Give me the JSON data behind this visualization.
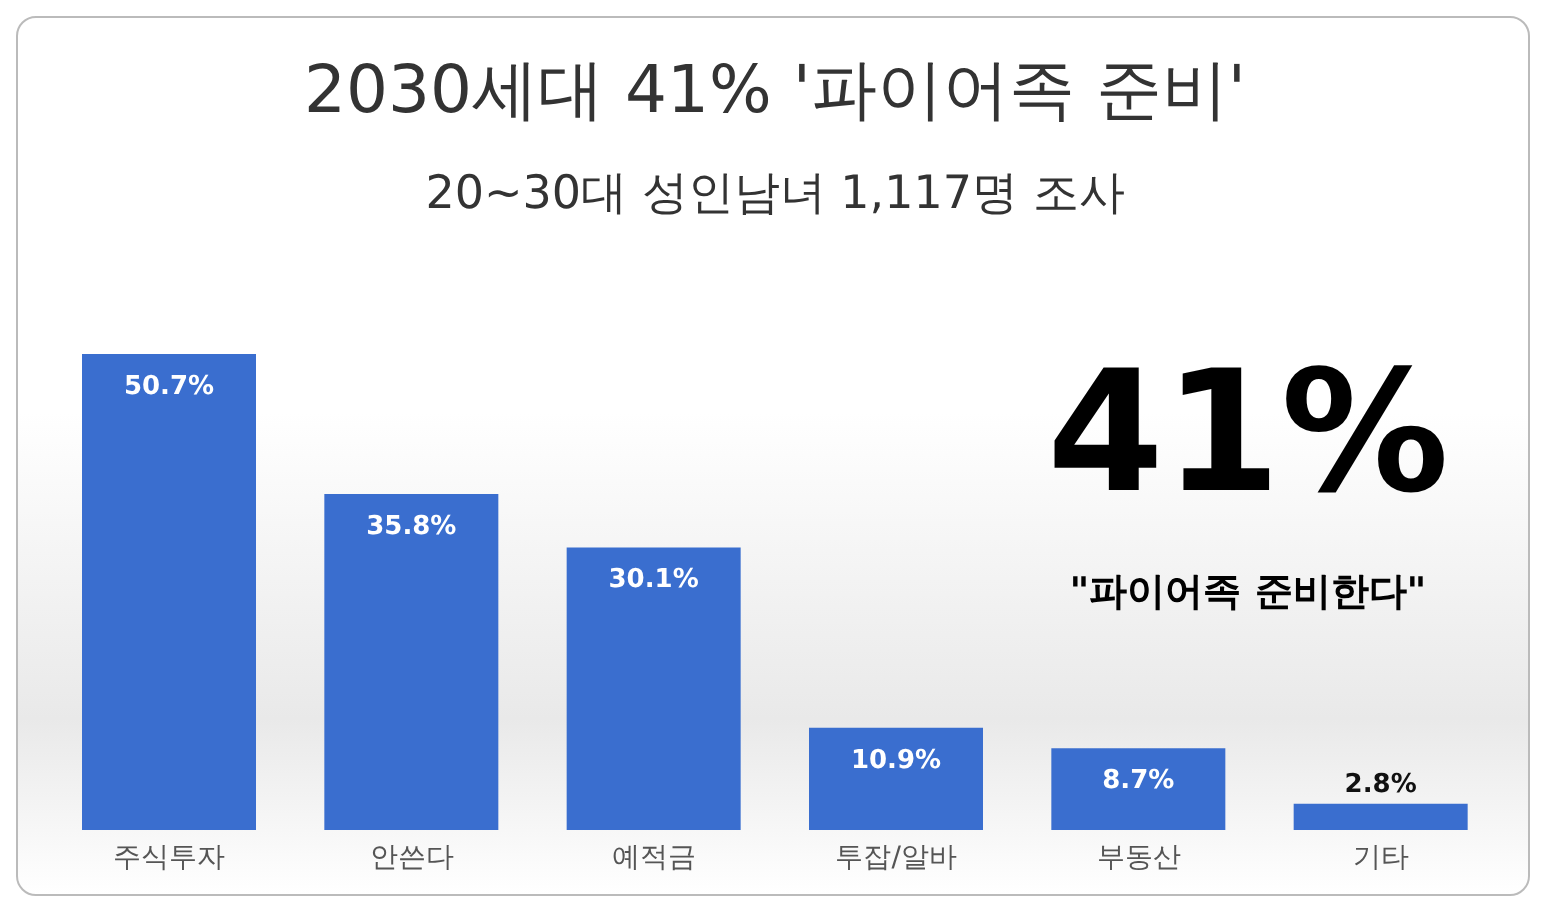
{
  "chart_data": {
    "type": "bar",
    "title": "2030세대 41% '파이어족 준비'",
    "subtitle": "20~30대 성인남녀 1,117명 조사",
    "categories": [
      "주식투자",
      "안쓴다",
      "예적금",
      "투잡/알바",
      "부동산",
      "기타"
    ],
    "values": [
      50.7,
      35.8,
      30.1,
      10.9,
      8.7,
      2.8
    ],
    "value_labels": [
      "50.7%",
      "35.8%",
      "30.1%",
      "10.9%",
      "8.7%",
      "2.8%"
    ],
    "color": "#3a6ecf",
    "annotations": [
      "41%",
      "\"파이어족 준비한다\""
    ],
    "grid": false,
    "legend": false
  }
}
